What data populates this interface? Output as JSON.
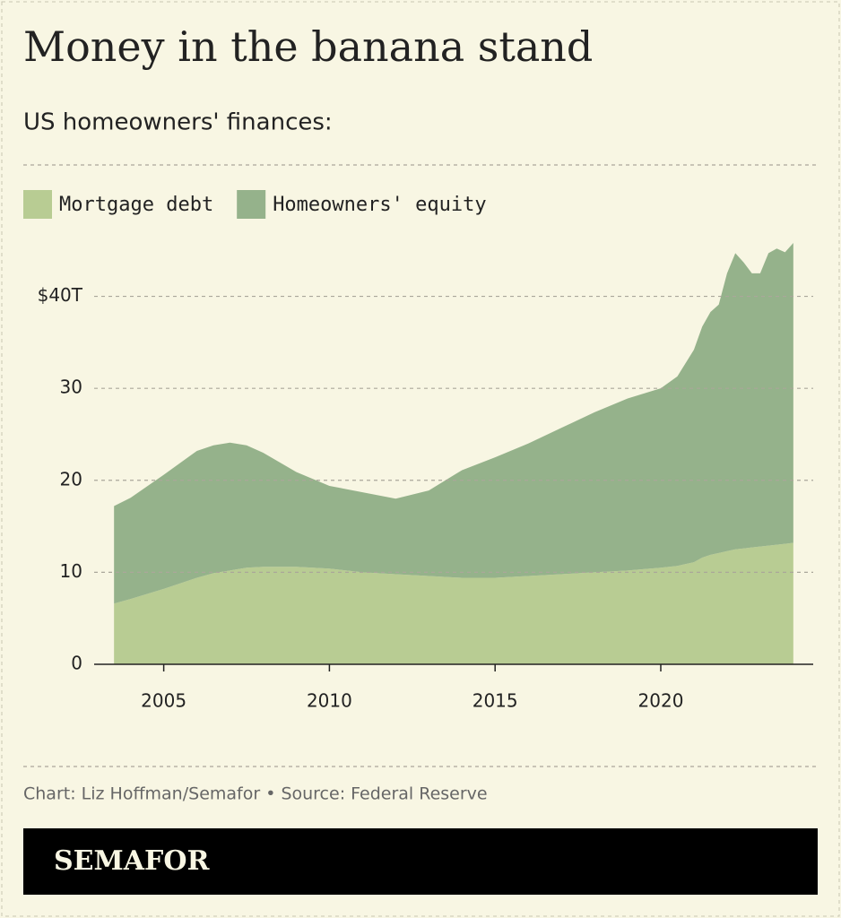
{
  "chart_data": {
    "type": "stacked-area",
    "title": "Money in the banana stand",
    "subtitle": "US homeowners' finances:",
    "caption": "Chart: Liz Hoffman/Semafor • Source: Federal Reserve",
    "brand": "SEMAFOR",
    "x": [
      2003.5,
      2004,
      2005,
      2006,
      2006.5,
      2007,
      2007.5,
      2008,
      2009,
      2010,
      2011,
      2012,
      2013,
      2014,
      2015,
      2016,
      2017,
      2018,
      2019,
      2020,
      2020.5,
      2021,
      2021.25,
      2021.5,
      2021.75,
      2022,
      2022.25,
      2022.5,
      2022.75,
      2023,
      2023.25,
      2023.5,
      2023.75,
      2024
    ],
    "series": [
      {
        "name": "Mortgage debt",
        "color": "#b8cc93",
        "values": [
          6.6,
          7.1,
          8.2,
          9.4,
          9.9,
          10.2,
          10.5,
          10.6,
          10.6,
          10.4,
          10.0,
          9.8,
          9.6,
          9.4,
          9.4,
          9.6,
          9.8,
          10.0,
          10.2,
          10.5,
          10.7,
          11.1,
          11.6,
          11.9,
          12.1,
          12.3,
          12.5,
          12.6,
          12.7,
          12.8,
          12.9,
          13.0,
          13.1,
          13.2
        ]
      },
      {
        "name": "Homeowners' equity",
        "color": "#95b28b",
        "values": [
          10.6,
          11.0,
          12.4,
          13.8,
          13.9,
          13.9,
          13.3,
          12.4,
          10.3,
          9.0,
          8.7,
          8.2,
          9.3,
          11.7,
          13.1,
          14.4,
          15.9,
          17.4,
          18.7,
          19.5,
          20.6,
          23.1,
          25.1,
          26.4,
          27.0,
          30.2,
          32.2,
          31.1,
          29.8,
          29.7,
          31.8,
          32.2,
          31.7,
          32.6
        ]
      }
    ],
    "xlim": [
      2002.9,
      2024.6
    ],
    "xticks": [
      2005,
      2010,
      2015,
      2020
    ],
    "ylim": [
      0,
      46
    ],
    "yticks": [
      0,
      10,
      20,
      30,
      {
        "value": 40,
        "label": "$40T"
      }
    ],
    "grid": true
  }
}
